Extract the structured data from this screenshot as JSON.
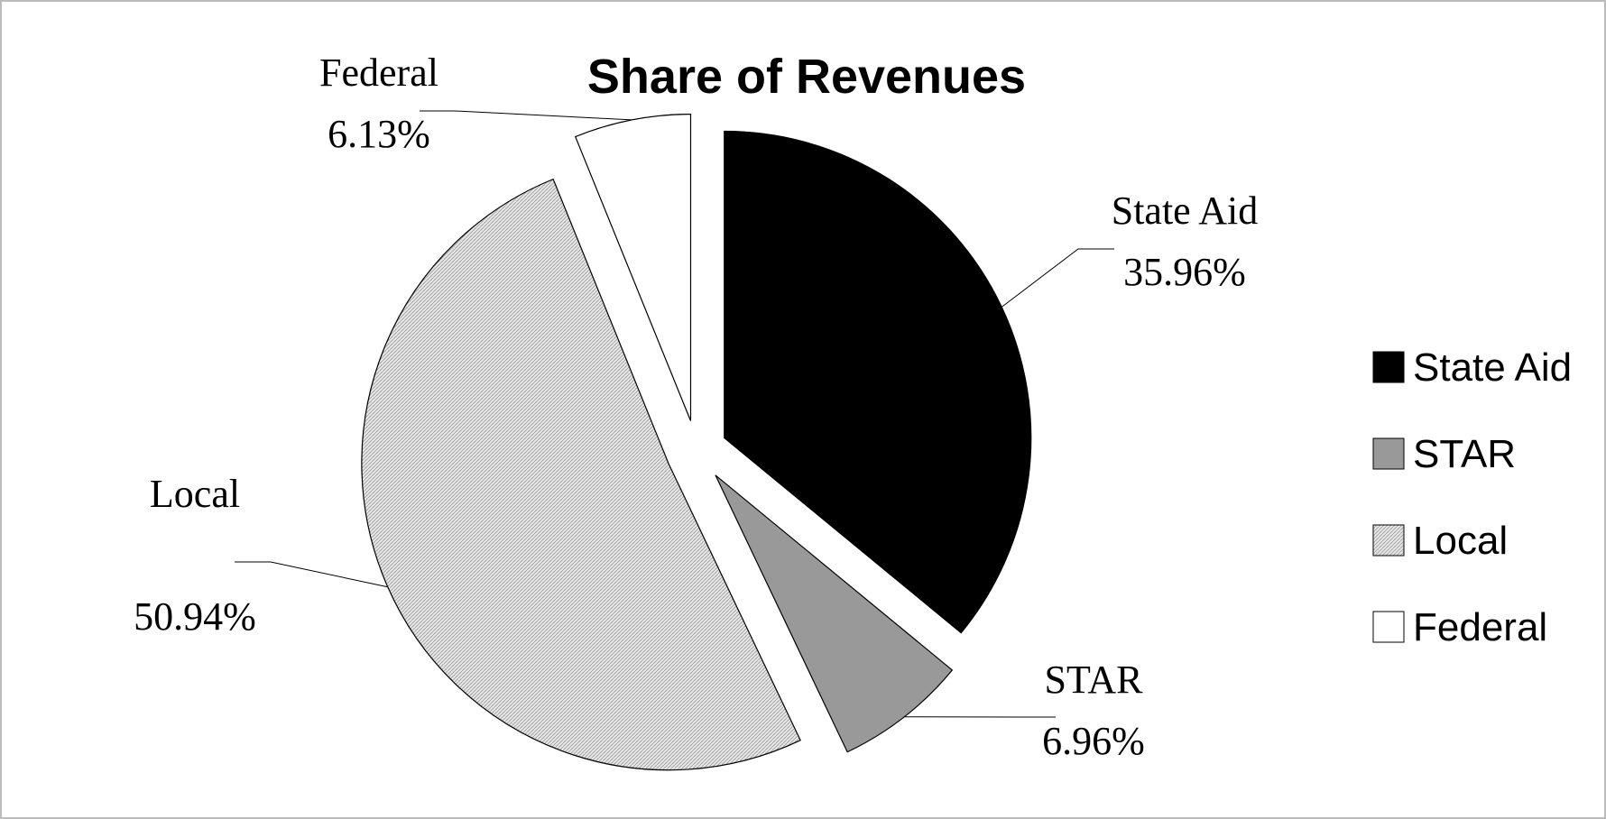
{
  "chart_data": {
    "type": "pie",
    "title": "Share of Revenues",
    "categories": [
      "State Aid",
      "STAR",
      "Local",
      "Federal"
    ],
    "values": [
      35.96,
      6.96,
      50.94,
      6.13
    ],
    "value_labels": [
      "35.96%",
      "6.96%",
      "50.94%",
      "6.13%"
    ],
    "colors": [
      "#000000",
      "#999999",
      "#dcdcdc",
      "#ffffff"
    ],
    "legend": "right"
  }
}
